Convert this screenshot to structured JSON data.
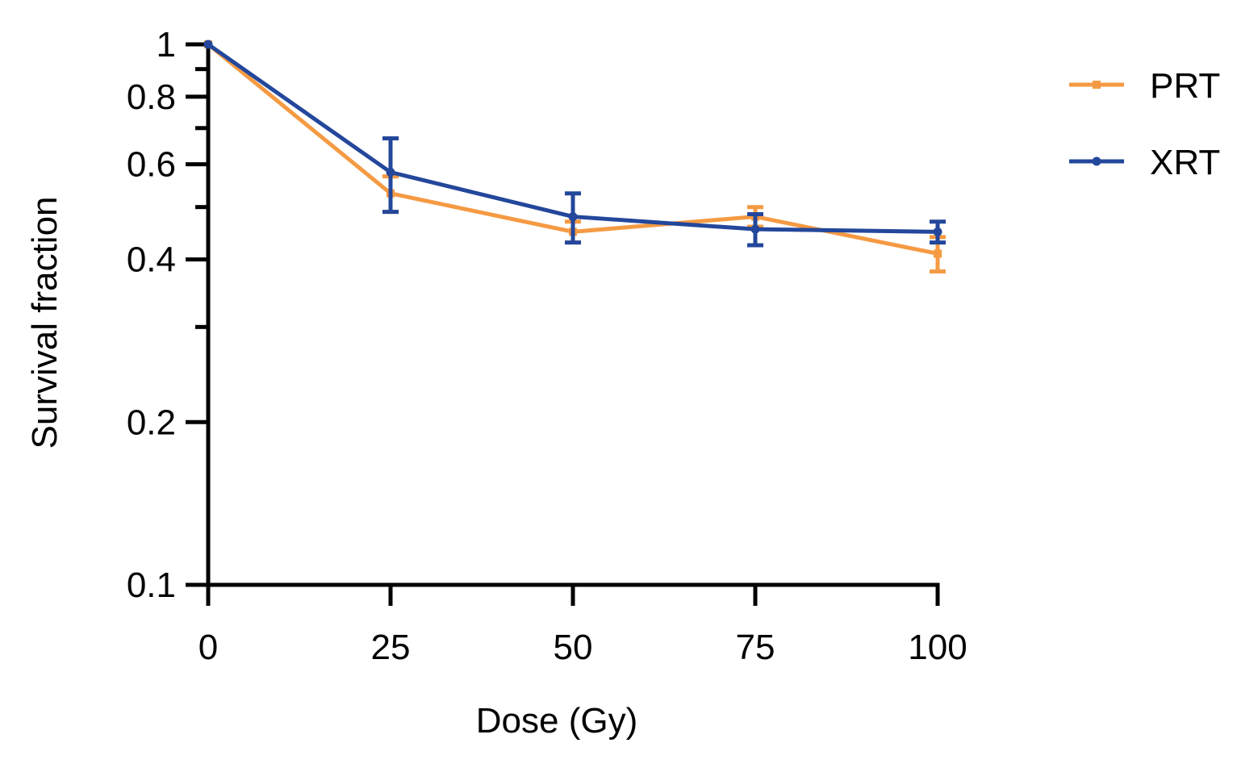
{
  "chart_data": {
    "type": "line",
    "title": "",
    "xlabel": "Dose (Gy)",
    "ylabel": "Survival fraction",
    "x": [
      0,
      25,
      50,
      75,
      100
    ],
    "xlim": [
      0,
      100
    ],
    "ylim": [
      0.1,
      1
    ],
    "yscale": "log",
    "x_ticks": [
      0,
      25,
      50,
      75,
      100
    ],
    "x_tick_labels": [
      "0",
      "25",
      "50",
      "75",
      "100"
    ],
    "y_major_ticks": [
      0.1,
      0.2,
      0.4,
      0.6,
      0.8,
      1
    ],
    "y_tick_labels": [
      "0.1",
      "0.2",
      "0.4",
      "0.6",
      "0.8",
      "1"
    ],
    "y_minor_ticks": [
      0.3,
      0.5,
      0.7,
      0.9
    ],
    "grid": false,
    "legend_position": "top-right",
    "series": [
      {
        "name": "PRT",
        "color": "#F59A43",
        "marker": "square",
        "values": [
          1,
          0.53,
          0.45,
          0.48,
          0.41
        ],
        "errors": [
          0,
          0.04,
          0.02,
          0.02,
          0.03
        ]
      },
      {
        "name": "XRT",
        "color": "#23479B",
        "marker": "circle",
        "values": [
          1,
          0.58,
          0.48,
          0.455,
          0.45
        ],
        "errors": [
          0,
          0.09,
          0.05,
          0.03,
          0.02
        ]
      }
    ]
  }
}
